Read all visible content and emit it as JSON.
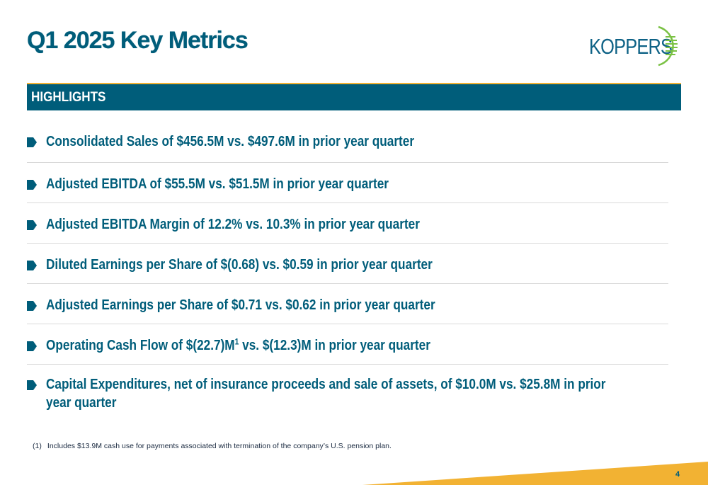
{
  "slide": {
    "title": "Q1 2025 Key Metrics",
    "logo_text": "KOPPERS",
    "section_header": "HIGHLIGHTS",
    "highlights": [
      {
        "text": "Consolidated Sales of $456.5M vs. $497.6M in prior year quarter"
      },
      {
        "text": "Adjusted EBITDA of $55.5M vs. $51.5M in prior year quarter"
      },
      {
        "text": "Adjusted EBITDA Margin of 12.2% vs. 10.3% in prior year quarter"
      },
      {
        "text": "Diluted Earnings per Share of $(0.68) vs. $0.59 in prior year quarter"
      },
      {
        "text": "Adjusted Earnings per Share of $0.71 vs. $0.62 in prior year quarter"
      },
      {
        "text_before": "Operating Cash Flow of $(22.7)M",
        "superscript": "1",
        "text_after": " vs. $(12.3)M in prior year quarter"
      },
      {
        "text_line1": "Capital Expenditures, net of insurance proceeds and sale of assets, of $10.0M vs. $25.8M in prior",
        "text_line2": "year quarter"
      }
    ],
    "footnote": {
      "marker": "(1)",
      "text": "Includes $13.9M cash use for payments associated with termination of the company’s U.S. pension plan."
    },
    "page_number": "4",
    "colors": {
      "brand_teal": "#005d7a",
      "accent_gold": "#f2b233",
      "logo_green": "#7ac143"
    }
  }
}
